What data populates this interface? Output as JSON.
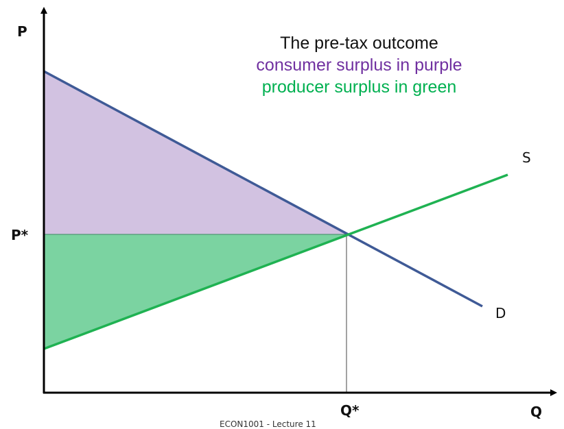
{
  "axes": {
    "y_label": "P",
    "x_label": "Q",
    "price_label": "P*",
    "quantity_label": "Q*"
  },
  "curves": {
    "supply_label": "S",
    "demand_label": "D"
  },
  "legend": {
    "title": "The pre-tax outcome",
    "consumer": "consumer surplus in purple",
    "producer": "producer surplus in green"
  },
  "colors": {
    "consumer_surplus": "#d2c2e1",
    "producer_surplus": "#7bd3a1",
    "demand_line": "#3f5a96",
    "supply_line": "#1fb252",
    "consumer_text": "#7030a0",
    "producer_text": "#00b050"
  },
  "footer": "ECON1001 - Lecture 11"
}
